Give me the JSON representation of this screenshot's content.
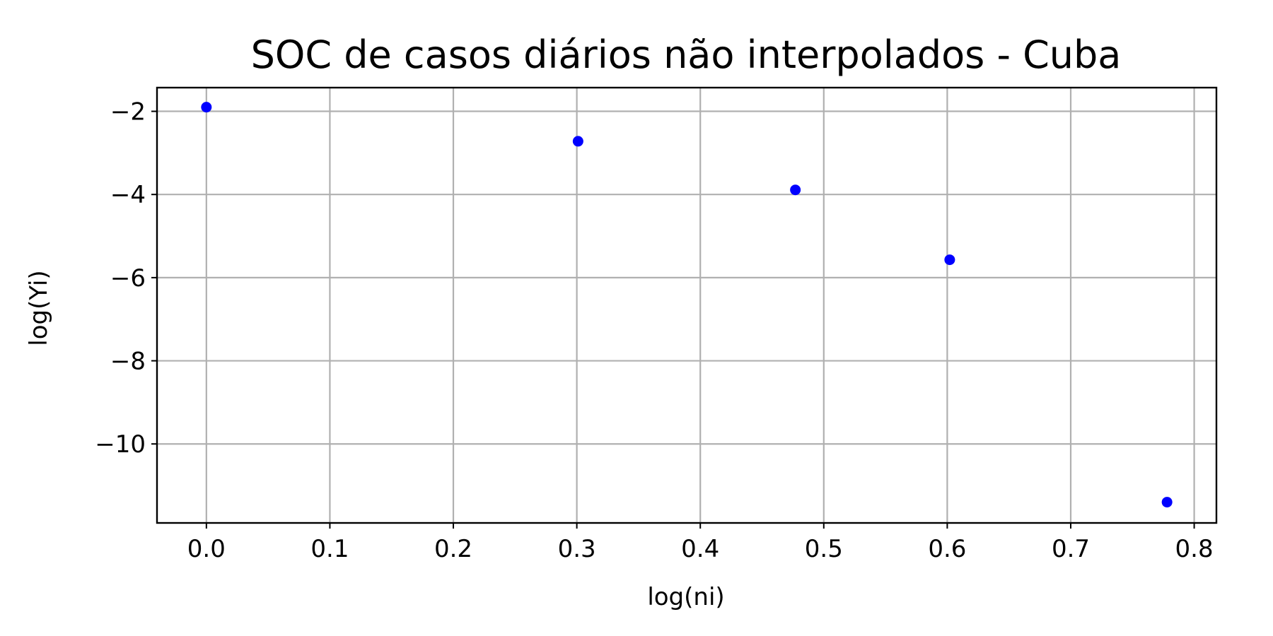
{
  "chart_data": {
    "type": "scatter",
    "title": "SOC de casos diários não interpolados - Cuba",
    "xlabel": "log(ni)",
    "ylabel": "log(Yi)",
    "xlim": [
      -0.04,
      0.818
    ],
    "ylim": [
      -11.9,
      -1.43
    ],
    "x_ticks": [
      0.0,
      0.1,
      0.2,
      0.3,
      0.4,
      0.5,
      0.6,
      0.7,
      0.8
    ],
    "x_tick_labels": [
      "0.0",
      "0.1",
      "0.2",
      "0.3",
      "0.4",
      "0.5",
      "0.6",
      "0.7",
      "0.8"
    ],
    "y_ticks": [
      -2,
      -4,
      -6,
      -8,
      -10
    ],
    "y_tick_labels": [
      "−2",
      "−4",
      "−6",
      "−8",
      "−10"
    ],
    "grid": true,
    "marker_color": "#0000ff",
    "points": [
      {
        "x": 0.0,
        "y": -1.9
      },
      {
        "x": 0.301,
        "y": -2.72
      },
      {
        "x": 0.477,
        "y": -3.89
      },
      {
        "x": 0.602,
        "y": -5.57
      },
      {
        "x": 0.778,
        "y": -11.4
      }
    ]
  }
}
